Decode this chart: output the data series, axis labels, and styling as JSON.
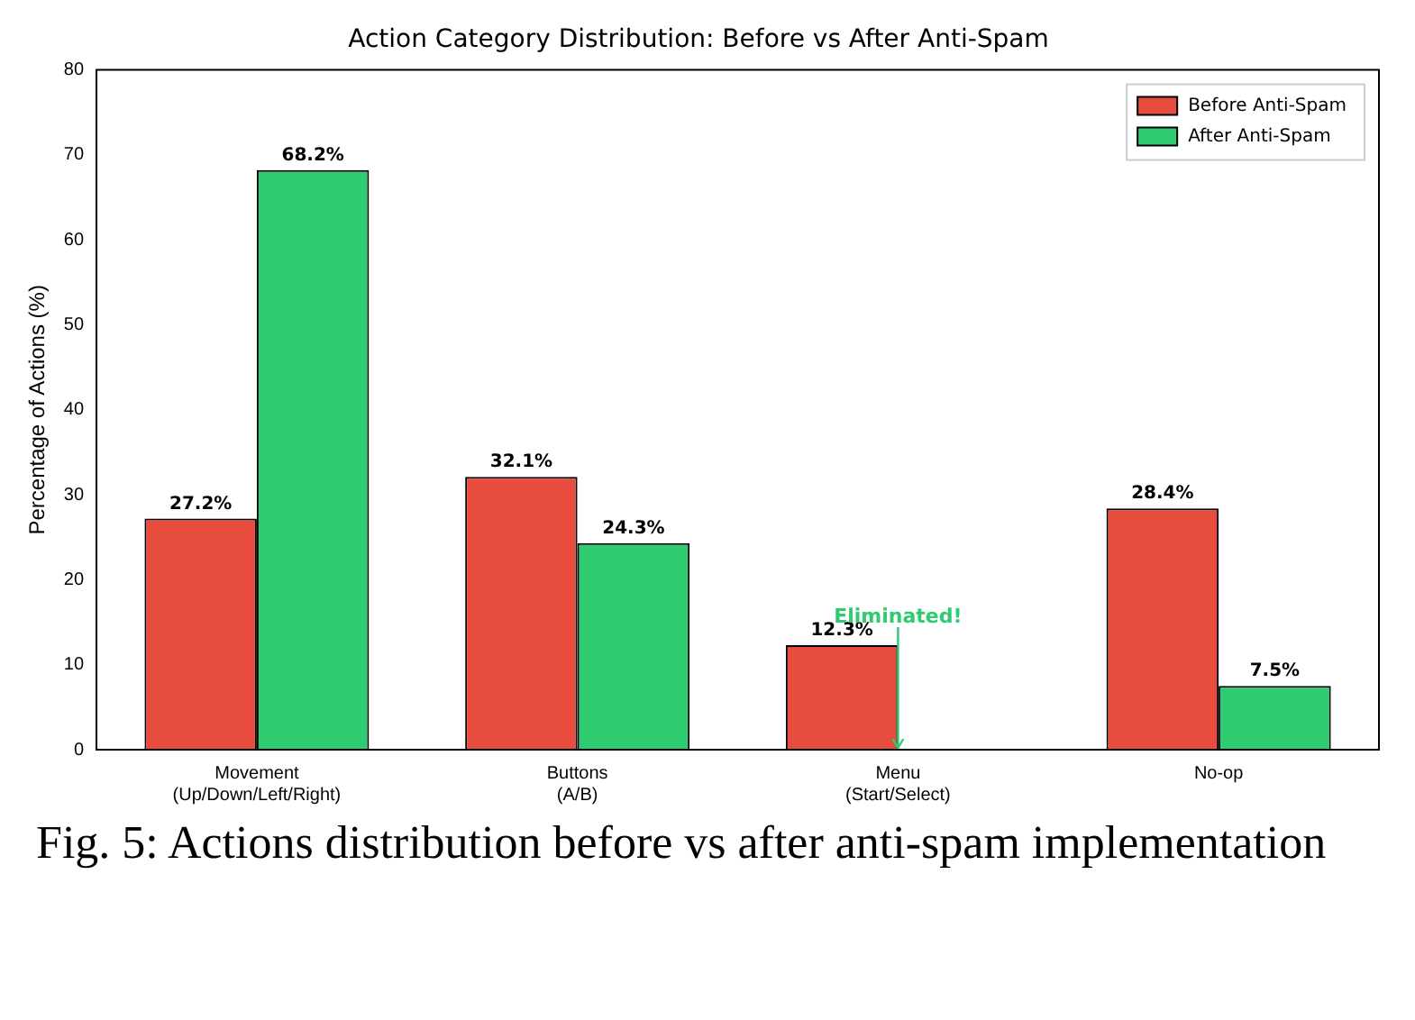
{
  "chart_data": {
    "type": "bar",
    "title": "Action Category Distribution: Before vs After Anti-Spam",
    "ylabel": "Percentage of Actions (%)",
    "categories": [
      "Movement\n(Up/Down/Left/Right)",
      "Buttons\n(A/B)",
      "Menu\n(Start/Select)",
      "No-op"
    ],
    "series": [
      {
        "name": "Before Anti-Spam",
        "color": "#e74c3c",
        "values": [
          27.2,
          32.1,
          12.3,
          28.4
        ],
        "value_labels": [
          "27.2%",
          "32.1%",
          "12.3%",
          "28.4%"
        ]
      },
      {
        "name": "After Anti-Spam",
        "color": "#2ecc71",
        "values": [
          68.2,
          24.3,
          0,
          7.5
        ],
        "value_labels": [
          "68.2%",
          "24.3%",
          null,
          "7.5%"
        ]
      }
    ],
    "ylim": [
      0,
      80
    ],
    "yticks": [
      0,
      10,
      20,
      30,
      40,
      50,
      60,
      70,
      80
    ],
    "grid": false,
    "legend": "top right",
    "annotations": [
      {
        "text": "Eliminated!",
        "x": "Menu\n(Start/Select)",
        "y": 0
      },
      "Fig. 5: Actions distribution before vs after anti-spam implementation"
    ]
  }
}
